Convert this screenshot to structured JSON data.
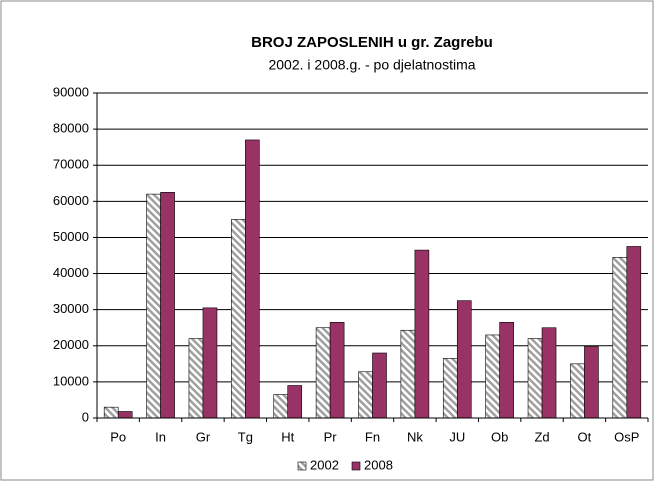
{
  "chart_data": {
    "type": "bar",
    "title": "BROJ ZAPOSLENIH u gr. Zagrebu",
    "subtitle": "2002. i 2008.g. - po djelatnostima",
    "categories": [
      "Po",
      "In",
      "Gr",
      "Tg",
      "Ht",
      "Pr",
      "Fn",
      "Nk",
      "JU",
      "Ob",
      "Zd",
      "Ot",
      "OsP"
    ],
    "series": [
      {
        "name": "2002",
        "color": "#a0a0a0",
        "pattern": "diagonal",
        "values": [
          3000,
          62000,
          22000,
          55000,
          6500,
          25000,
          12800,
          24300,
          16500,
          23000,
          22000,
          15000,
          44500
        ]
      },
      {
        "name": "2008",
        "color": "#993366",
        "values": [
          1800,
          62500,
          30500,
          77000,
          9000,
          26500,
          18000,
          46500,
          32500,
          26500,
          25000,
          19800,
          47500
        ]
      }
    ],
    "ylim": [
      0,
      90000
    ],
    "yticks": [
      0,
      10000,
      20000,
      30000,
      40000,
      50000,
      60000,
      70000,
      80000,
      90000
    ],
    "grid": true,
    "legend": "bottom"
  }
}
